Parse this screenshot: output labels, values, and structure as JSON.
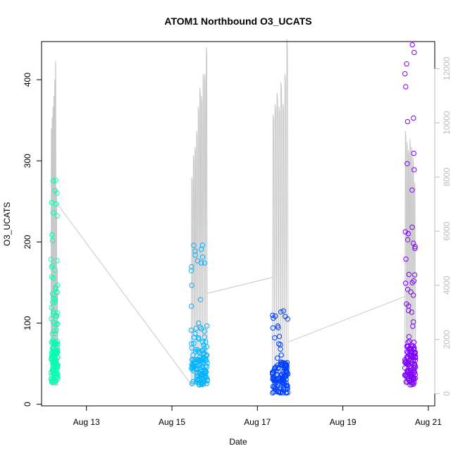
{
  "chart_data": {
    "type": "scatter",
    "title": "ATOM1 Northbound O3_UCATS",
    "xlabel": "Date",
    "ylabel": "O3_UCATS",
    "x_range_days": [
      11.95,
      21.15
    ],
    "x_ticks": [
      {
        "day": 13,
        "label": "Aug 13"
      },
      {
        "day": 15,
        "label": "Aug 15"
      },
      {
        "day": 17,
        "label": "Aug 17"
      },
      {
        "day": 19,
        "label": "Aug 19"
      },
      {
        "day": 21,
        "label": "Aug 21"
      }
    ],
    "ylim": [
      -2,
      447
    ],
    "y_ticks": [
      0,
      100,
      200,
      300,
      400
    ],
    "y2lim": [
      -450,
      13000
    ],
    "y2_ticks": [
      0,
      2000,
      4000,
      6000,
      8000,
      10000,
      12000
    ],
    "y2_axis_color": "#bdbdbd",
    "altitude_line_color": "#c8c8c8",
    "point_colors": [
      "#00ffb3",
      "#00b3ff",
      "#0040ff",
      "#7f00ff"
    ],
    "flights": [
      {
        "date": "Aug 12",
        "start_day": 12.17,
        "end_day": 12.33,
        "o3_min": 27,
        "o3_max": 276,
        "altitude_peaks": [
          9800,
          10200,
          10600,
          11000,
          11600,
          12300,
          7600,
          4500
        ]
      },
      {
        "date": "Aug 15",
        "start_day": 15.45,
        "end_day": 15.83,
        "o3_min": 24,
        "o3_max": 196,
        "altitude_peaks": [
          8000,
          8800,
          9100,
          9700,
          10600,
          11300,
          11000,
          11800,
          11800,
          12800
        ]
      },
      {
        "date": "Aug 17",
        "start_day": 17.35,
        "end_day": 17.72,
        "o3_min": 14,
        "o3_max": 115,
        "altitude_peaks": [
          10300,
          10700,
          11100,
          10600,
          11500,
          10700,
          11800,
          13100
        ]
      },
      {
        "date": "Aug 20",
        "start_day": 20.45,
        "end_day": 20.7,
        "o3_min": 24,
        "o3_max": 443,
        "altitude_peaks": [
          9700,
          9300,
          9000,
          9400,
          9100,
          8700,
          7800
        ]
      }
    ]
  }
}
